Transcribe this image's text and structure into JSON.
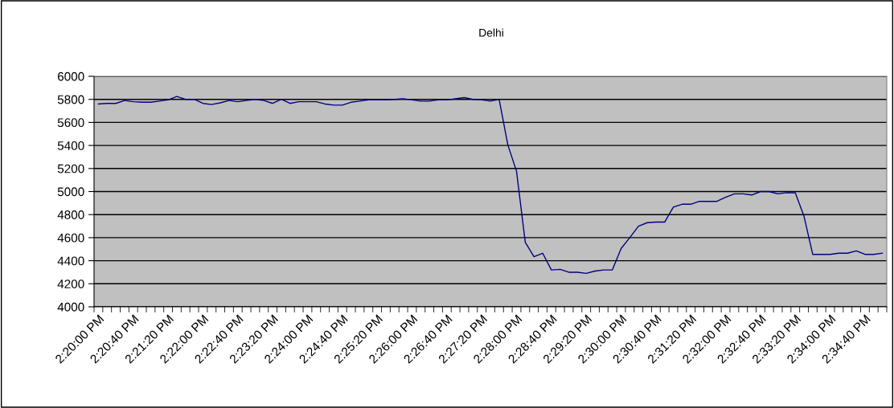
{
  "chart_data": {
    "type": "line",
    "title": "Delhi",
    "categories": [
      "2:20:00 PM",
      null,
      null,
      null,
      "2:20:40 PM",
      null,
      null,
      null,
      "2:21:20 PM",
      null,
      null,
      null,
      "2:22:00 PM",
      null,
      null,
      null,
      "2:22:40 PM",
      null,
      null,
      null,
      "2:23:20 PM",
      null,
      null,
      null,
      "2:24:00 PM",
      null,
      null,
      null,
      "2:24:40 PM",
      null,
      null,
      null,
      "2:25:20 PM",
      null,
      null,
      null,
      "2:26:00 PM",
      null,
      null,
      null,
      "2:26:40 PM",
      null,
      null,
      null,
      "2:27:20 PM",
      null,
      null,
      null,
      "2:28:00 PM",
      null,
      null,
      null,
      "2:28:40 PM",
      null,
      null,
      null,
      "2:29:20 PM",
      null,
      null,
      null,
      "2:30:00 PM",
      null,
      null,
      null,
      "2:30:40 PM",
      null,
      null,
      null,
      "2:31:20 PM",
      null,
      null,
      null,
      "2:32:00 PM",
      null,
      null,
      null,
      "2:32:40 PM",
      null,
      null,
      null,
      "2:33:20 PM",
      null,
      null,
      null,
      "2:34:00 PM",
      null,
      null,
      null,
      "2:34:40 PM",
      null,
      null
    ],
    "series": [
      {
        "color": "#000080",
        "values": [
          5760,
          5765,
          5765,
          5790,
          5780,
          5775,
          5775,
          5785,
          5795,
          5825,
          5800,
          5800,
          5765,
          5755,
          5770,
          5790,
          5780,
          5790,
          5800,
          5790,
          5765,
          5800,
          5765,
          5780,
          5780,
          5780,
          5760,
          5750,
          5750,
          5775,
          5785,
          5795,
          5795,
          5795,
          5800,
          5805,
          5795,
          5785,
          5785,
          5795,
          5795,
          5805,
          5815,
          5800,
          5795,
          5785,
          5800,
          5405,
          5175,
          4560,
          4435,
          4465,
          4320,
          4325,
          4300,
          4300,
          4290,
          4310,
          4320,
          4320,
          4505,
          4600,
          4700,
          4730,
          4735,
          4735,
          4865,
          4890,
          4890,
          4915,
          4915,
          4915,
          4950,
          4980,
          4980,
          4970,
          5000,
          5000,
          4980,
          4990,
          4990,
          4785,
          4455,
          4455,
          4455,
          4465,
          4465,
          4485,
          4455,
          4455,
          4465
        ]
      }
    ],
    "ylim": [
      4000,
      6000
    ],
    "yticks": [
      4000,
      4200,
      4400,
      4600,
      4800,
      5000,
      5200,
      5400,
      5600,
      5800,
      6000
    ],
    "grid": "y",
    "marker": "none",
    "line_style": "solid"
  }
}
